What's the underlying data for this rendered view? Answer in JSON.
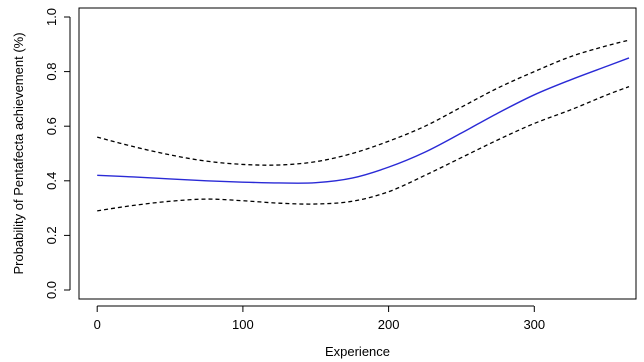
{
  "chart_data": {
    "type": "line",
    "title": "",
    "xlabel": "Experience",
    "ylabel": "Probability of Pentafecta achievement (%)",
    "xlim": [
      0,
      370
    ],
    "ylim": [
      0,
      1
    ],
    "x_ticks": [
      0,
      100,
      200,
      300
    ],
    "y_ticks": [
      0.0,
      0.2,
      0.4,
      0.6,
      0.8,
      1.0
    ],
    "x_tick_labels": [
      "0",
      "100",
      "200",
      "300"
    ],
    "y_tick_labels": [
      "0.0",
      "0.2",
      "0.4",
      "0.6",
      "0.8",
      "1.0"
    ],
    "grid": false,
    "legend": "none",
    "x": [
      0,
      25,
      50,
      75,
      100,
      125,
      150,
      175,
      200,
      225,
      250,
      275,
      300,
      325,
      350,
      365
    ],
    "series": [
      {
        "role": "estimate",
        "color": "#2a2ad6",
        "line_style": "solid",
        "values": [
          0.42,
          0.414,
          0.407,
          0.4,
          0.395,
          0.392,
          0.393,
          0.41,
          0.45,
          0.505,
          0.575,
          0.648,
          0.715,
          0.77,
          0.82,
          0.85
        ]
      },
      {
        "role": "upper bound",
        "color": "#000000",
        "line_style": "dashed",
        "values": [
          0.56,
          0.525,
          0.495,
          0.472,
          0.46,
          0.458,
          0.47,
          0.5,
          0.545,
          0.6,
          0.67,
          0.74,
          0.8,
          0.855,
          0.895,
          0.915
        ]
      },
      {
        "role": "lower bound",
        "color": "#000000",
        "line_style": "dashed",
        "values": [
          0.29,
          0.31,
          0.325,
          0.333,
          0.327,
          0.318,
          0.315,
          0.325,
          0.36,
          0.42,
          0.485,
          0.55,
          0.61,
          0.66,
          0.715,
          0.745
        ]
      }
    ]
  }
}
